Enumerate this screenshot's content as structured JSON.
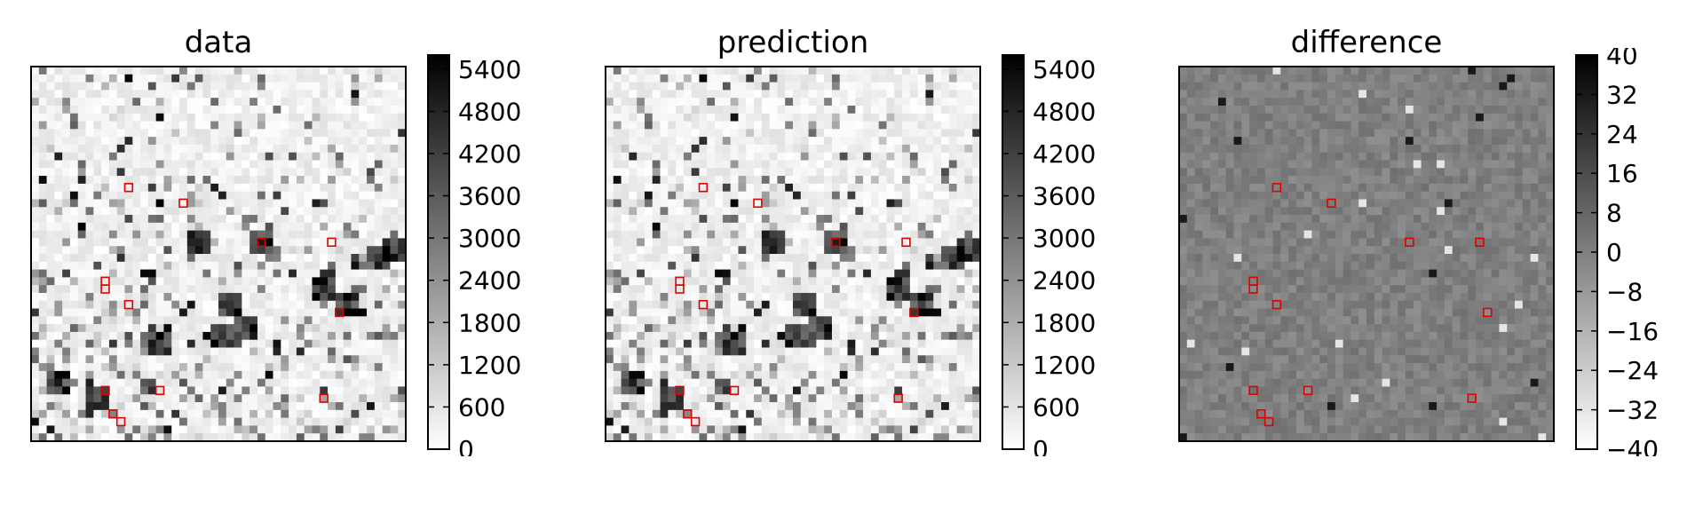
{
  "panels": [
    {
      "title": "data",
      "colorbar": {
        "ticks": [
          "0",
          "600",
          "1200",
          "1800",
          "2400",
          "3000",
          "3600",
          "4200",
          "4800",
          "5400"
        ],
        "min": 0,
        "max": 5600
      }
    },
    {
      "title": "prediction",
      "colorbar": {
        "ticks": [
          "0",
          "600",
          "1200",
          "1800",
          "2400",
          "3000",
          "3600",
          "4200",
          "4800",
          "5400"
        ],
        "min": 0,
        "max": 5600
      }
    },
    {
      "title": "difference",
      "colorbar": {
        "ticks": [
          "−40",
          "−32",
          "−24",
          "−16",
          "−8",
          "0",
          "8",
          "16",
          "24",
          "32",
          "40"
        ],
        "min": -40,
        "max": 40
      }
    }
  ],
  "chart_data": [
    {
      "type": "heatmap",
      "title": "data",
      "colormap": "gray_r",
      "vmin": 0,
      "vmax": 5600,
      "grid_size": [
        48,
        48
      ],
      "marker_color": "#e00000",
      "markers_grid": [
        [
          12,
          15
        ],
        [
          19,
          17
        ],
        [
          29,
          22
        ],
        [
          38,
          22
        ],
        [
          9,
          27
        ],
        [
          9,
          28
        ],
        [
          12,
          30
        ],
        [
          39,
          31
        ],
        [
          9,
          41
        ],
        [
          16,
          41
        ],
        [
          37,
          42
        ],
        [
          10,
          44
        ],
        [
          11,
          45
        ]
      ]
    },
    {
      "type": "heatmap",
      "title": "prediction",
      "colormap": "gray_r",
      "vmin": 0,
      "vmax": 5600,
      "grid_size": [
        48,
        48
      ],
      "marker_color": "#e00000",
      "markers_grid": [
        [
          12,
          15
        ],
        [
          19,
          17
        ],
        [
          29,
          22
        ],
        [
          38,
          22
        ],
        [
          9,
          27
        ],
        [
          9,
          28
        ],
        [
          12,
          30
        ],
        [
          39,
          31
        ],
        [
          9,
          41
        ],
        [
          16,
          41
        ],
        [
          37,
          42
        ],
        [
          10,
          44
        ],
        [
          11,
          45
        ]
      ]
    },
    {
      "type": "heatmap",
      "title": "difference",
      "colormap": "gray_r",
      "vmin": -40,
      "vmax": 40,
      "grid_size": [
        48,
        48
      ],
      "marker_color": "#e00000",
      "markers_grid": [
        [
          12,
          15
        ],
        [
          19,
          17
        ],
        [
          29,
          22
        ],
        [
          38,
          22
        ],
        [
          9,
          27
        ],
        [
          9,
          28
        ],
        [
          12,
          30
        ],
        [
          39,
          31
        ],
        [
          9,
          41
        ],
        [
          16,
          41
        ],
        [
          37,
          42
        ],
        [
          10,
          44
        ],
        [
          11,
          45
        ]
      ]
    }
  ]
}
